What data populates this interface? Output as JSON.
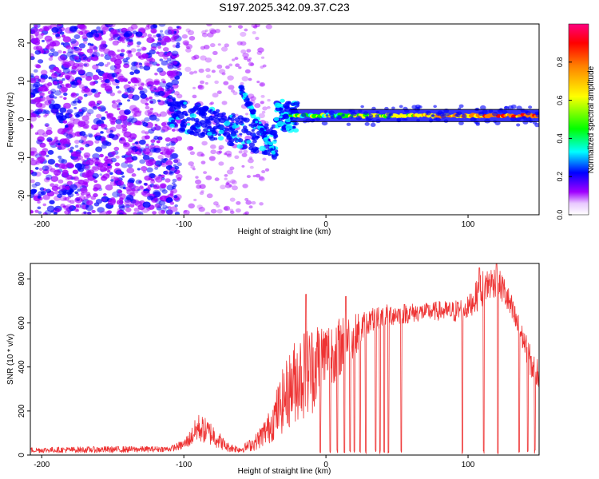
{
  "title": "S197.2025.342.09.37.C23",
  "chart_data": [
    {
      "type": "heatmap",
      "title": "S197.2025.342.09.37.C23",
      "xlabel": "Height of straight line (km)",
      "ylabel": "Frequency (Hz)",
      "xlim": [
        -208,
        150
      ],
      "ylim": [
        -25,
        25
      ],
      "xticks": [
        -200,
        -100,
        0,
        100
      ],
      "yticks": [
        -20,
        -10,
        0,
        10,
        20
      ],
      "xtick_labels": [
        "-200",
        "-100",
        "0",
        "100"
      ],
      "ytick_labels": [
        "-20",
        "-10",
        "0",
        "10",
        "20"
      ],
      "colorbar": {
        "label": "Normalized spectral amplitude",
        "range": [
          0,
          1
        ],
        "ticks": [
          0.0,
          0.2,
          0.4,
          0.6,
          0.8
        ],
        "tick_labels": [
          "0.0",
          "0.2",
          "0.4",
          "0.6",
          "0.8"
        ],
        "colors": [
          "#ffffff",
          "#a000ff",
          "#0000ff",
          "#00ffff",
          "#00ff00",
          "#ffff00",
          "#ff8000",
          "#ff0000",
          "#ff0080"
        ]
      },
      "features": [
        {
          "x": [
            -208,
            -103
          ],
          "freq": [
            -25,
            25
          ],
          "description": "scattered noise"
        },
        {
          "x": [
            -110,
            -35
          ],
          "freq_start": 2,
          "freq_end": -8,
          "description": "descending branch"
        },
        {
          "x": [
            -60,
            -35
          ],
          "freq_start": 8,
          "freq_end": -10,
          "description": "descending arc"
        },
        {
          "x": [
            -25,
            150
          ],
          "freq": 1,
          "description": "steady tone near 1 Hz"
        }
      ]
    },
    {
      "type": "line",
      "xlabel": "Height of straight line (km)",
      "ylabel": "SNR (10 * v/v)",
      "xlim": [
        -208,
        150
      ],
      "ylim": [
        0,
        870
      ],
      "xticks": [
        -200,
        -100,
        0,
        100
      ],
      "yticks": [
        0,
        200,
        400,
        600,
        800
      ],
      "xtick_labels": [
        "-200",
        "-100",
        "0",
        "100"
      ],
      "ytick_labels": [
        "0",
        "200",
        "400",
        "600",
        "800"
      ],
      "color": "#ee3333",
      "envelope": {
        "x": [
          -208,
          -150,
          -110,
          -100,
          -95,
          -90,
          -80,
          -70,
          -60,
          -50,
          -40,
          -30,
          -20,
          -10,
          -5,
          0,
          10,
          20,
          30,
          40,
          50,
          60,
          70,
          80,
          90,
          95,
          100,
          110,
          115,
          120,
          125,
          130,
          140,
          145,
          150
        ],
        "low": [
          10,
          10,
          15,
          25,
          40,
          60,
          40,
          15,
          10,
          20,
          50,
          100,
          150,
          180,
          250,
          300,
          350,
          450,
          550,
          580,
          590,
          600,
          610,
          610,
          600,
          600,
          620,
          670,
          700,
          720,
          680,
          600,
          450,
          330,
          300
        ],
        "high": [
          35,
          40,
          40,
          70,
          120,
          190,
          150,
          60,
          40,
          90,
          200,
          400,
          560,
          600,
          620,
          610,
          630,
          640,
          660,
          690,
          690,
          690,
          690,
          700,
          700,
          720,
          720,
          840,
          860,
          860,
          820,
          740,
          560,
          480,
          430
        ]
      },
      "peaks": [
        {
          "x": -14,
          "y": 730
        },
        {
          "x": 14,
          "y": 720
        },
        {
          "x": 108,
          "y": 850
        },
        {
          "x": 120,
          "y": 870
        }
      ],
      "dropouts": [
        -4,
        3,
        8,
        13,
        17,
        20,
        24,
        28,
        35,
        38,
        41,
        44,
        53,
        96,
        111,
        121,
        136,
        142,
        147
      ]
    }
  ]
}
